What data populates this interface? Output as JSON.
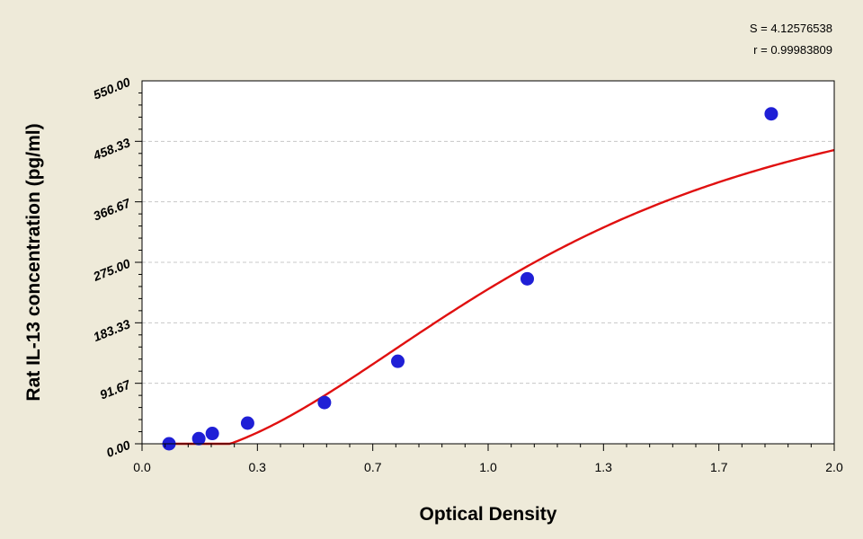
{
  "stats": {
    "s": "S = 4.12576538",
    "r": "r = 0.99983809"
  },
  "colors": {
    "background": "#eeead9",
    "plot_area": "#ffffff",
    "curve": "#e01010",
    "points": "#1f1fd6",
    "grid": "#c8c8c8"
  },
  "chart_data": {
    "type": "scatter",
    "title": "",
    "xlabel": "Optical Density",
    "ylabel": "Rat IL-13 concentration (pg/ml)",
    "xlim": [
      0.0,
      2.0
    ],
    "ylim": [
      0.0,
      550.0
    ],
    "x_ticks": [
      "0.0",
      "0.3",
      "0.7",
      "1.0",
      "1.3",
      "1.7",
      "2.0"
    ],
    "x_tick_values": [
      0.0,
      0.333,
      0.667,
      1.0,
      1.333,
      1.667,
      2.0
    ],
    "y_ticks": [
      "0.00",
      "91.67",
      "183.33",
      "275.00",
      "366.67",
      "458.33",
      "550.00"
    ],
    "y_tick_values": [
      0.0,
      91.67,
      183.33,
      275.0,
      366.67,
      458.33,
      550.0
    ],
    "grid": "horizontal",
    "points": {
      "x": [
        0.078,
        0.164,
        0.203,
        0.305,
        0.527,
        0.739,
        1.113,
        1.818
      ],
      "y": [
        0,
        7.8,
        15.6,
        31.3,
        62.5,
        125,
        250,
        500
      ]
    },
    "fit_curve": {
      "type": "4PL",
      "a": -24,
      "b": 2.1,
      "c": 1.18,
      "d": 600
    }
  }
}
